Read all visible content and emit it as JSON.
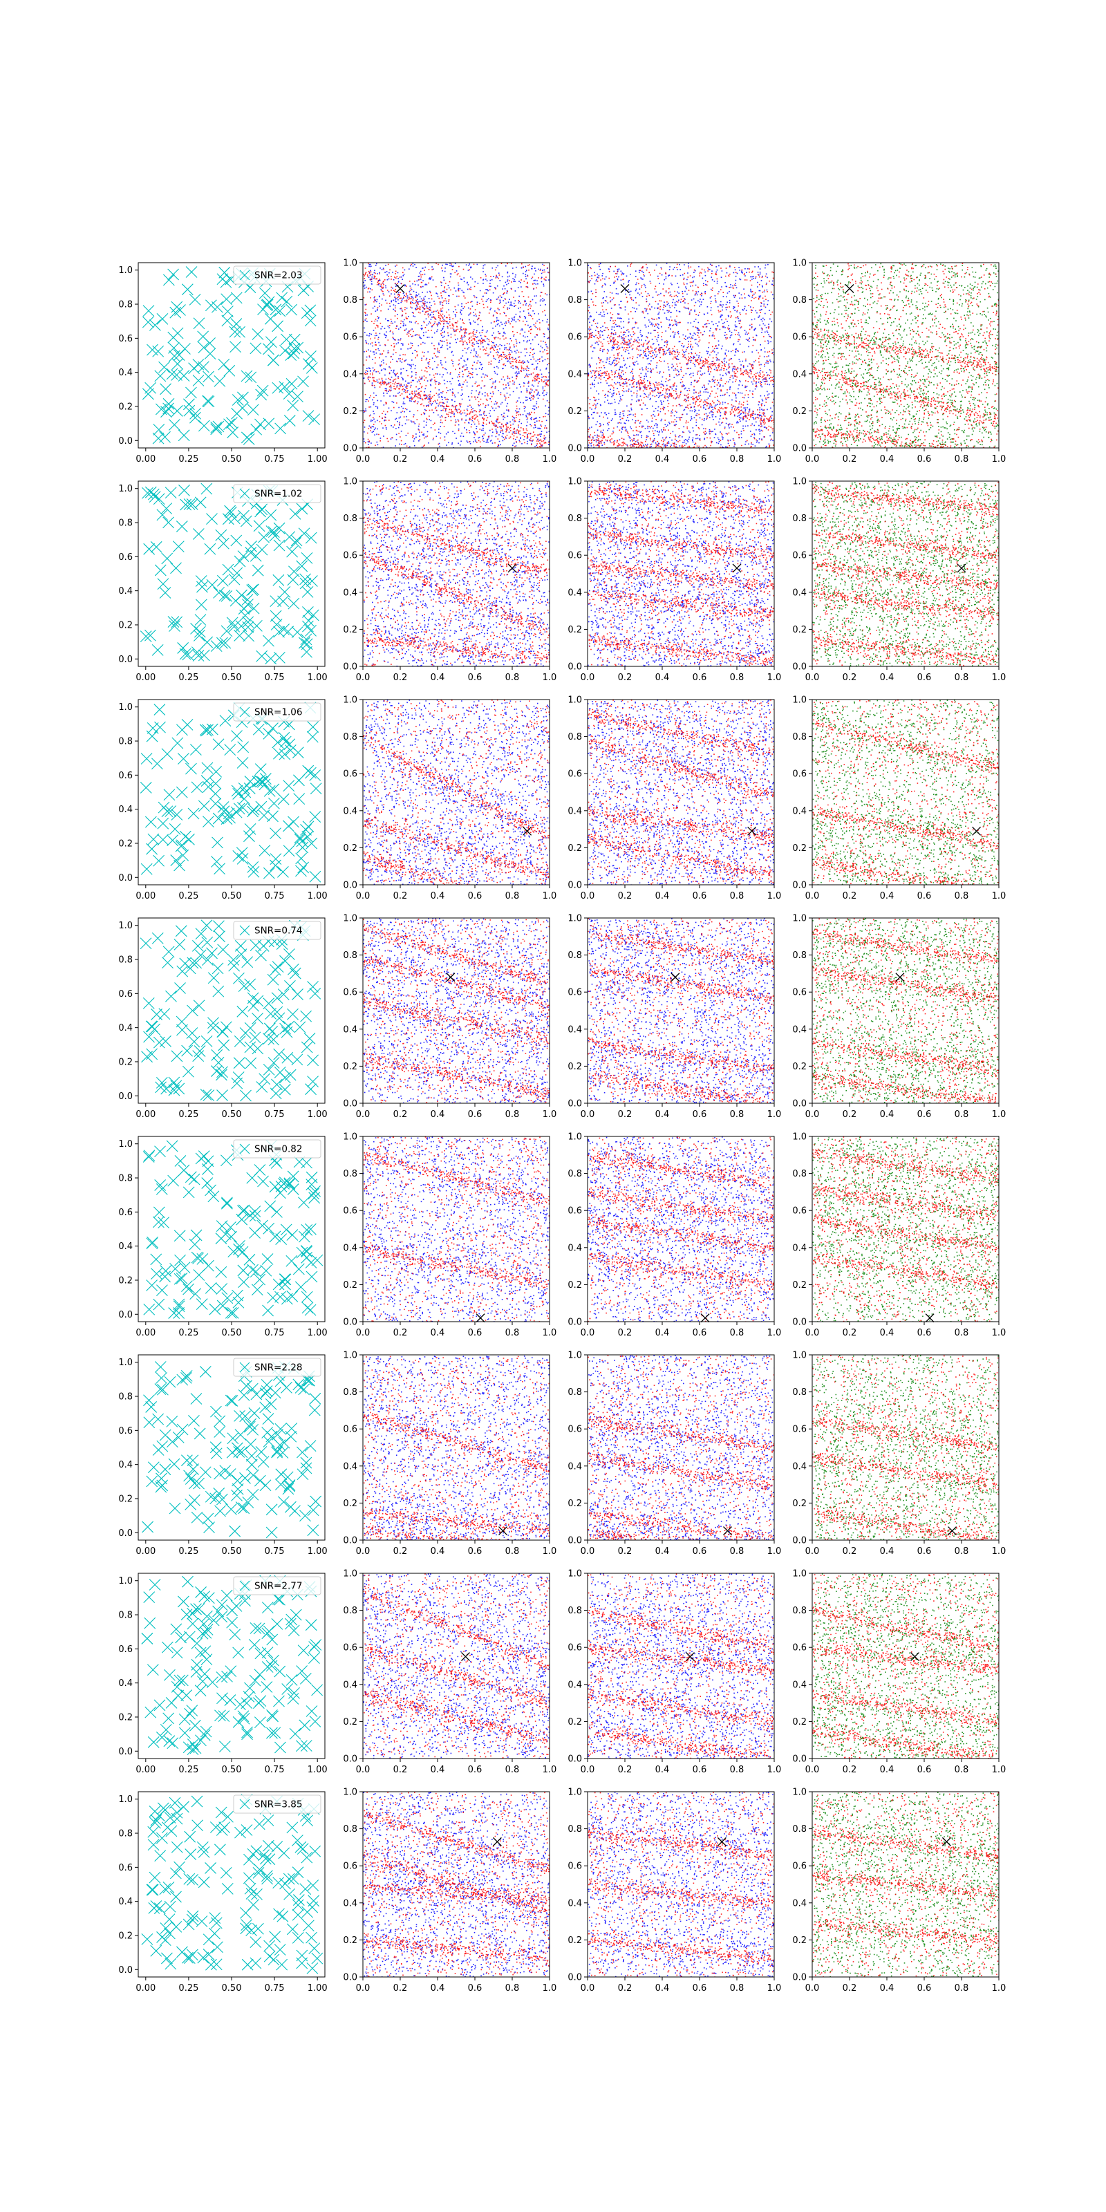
{
  "figure": {
    "rows": 8,
    "cols": 4,
    "colors": {
      "cross_marker": "#00bfbf",
      "signal": "#ff0000",
      "noise_blue": "#0000ff",
      "noise_green": "#008000",
      "target_marker": "#000000"
    }
  },
  "chart_data": [
    {
      "row": 0,
      "legend": "SNR=2.03",
      "target": [
        0.2,
        0.86
      ],
      "bands": [
        [
          0.4,
          0.38
        ],
        [
          0.95,
          0.6
        ]
      ],
      "bands_col2": [
        [
          0.05,
          0.1
        ],
        [
          0.42,
          0.28
        ],
        [
          0.62,
          0.25
        ]
      ],
      "bands_col3": [
        [
          0.1,
          0.15
        ],
        [
          0.42,
          0.28
        ],
        [
          0.62,
          0.18
        ]
      ]
    },
    {
      "row": 1,
      "legend": "SNR=1.02",
      "target": [
        0.8,
        0.53
      ],
      "bands": [
        [
          0.6,
          0.42
        ],
        [
          0.15,
          0.1
        ],
        [
          0.8,
          0.3
        ]
      ],
      "bands_col2": [
        [
          0.95,
          0.1
        ],
        [
          0.72,
          0.12
        ],
        [
          0.55,
          0.12
        ],
        [
          0.4,
          0.12
        ],
        [
          0.15,
          0.12
        ]
      ],
      "bands_col3": [
        [
          0.95,
          0.1
        ],
        [
          0.72,
          0.12
        ],
        [
          0.55,
          0.12
        ],
        [
          0.4,
          0.12
        ],
        [
          0.15,
          0.12
        ]
      ]
    },
    {
      "row": 2,
      "legend": "SNR=1.06",
      "target": [
        0.88,
        0.29
      ],
      "bands": [
        [
          0.8,
          0.55
        ],
        [
          0.35,
          0.3
        ],
        [
          0.15,
          0.3
        ]
      ],
      "bands_col2": [
        [
          0.92,
          0.2
        ],
        [
          0.78,
          0.3
        ],
        [
          0.4,
          0.15
        ],
        [
          0.25,
          0.2
        ]
      ],
      "bands_col3": [
        [
          0.88,
          0.25
        ],
        [
          0.4,
          0.18
        ],
        [
          0.12,
          0.15
        ]
      ]
    },
    {
      "row": 3,
      "legend": "SNR=0.74",
      "target": [
        0.47,
        0.68
      ],
      "bands": [
        [
          0.95,
          0.3
        ],
        [
          0.78,
          0.25
        ],
        [
          0.55,
          0.2
        ],
        [
          0.25,
          0.2
        ]
      ],
      "bands_col2": [
        [
          0.92,
          0.15
        ],
        [
          0.72,
          0.15
        ],
        [
          0.33,
          0.15
        ],
        [
          0.15,
          0.15
        ]
      ],
      "bands_col3": [
        [
          0.92,
          0.15
        ],
        [
          0.72,
          0.15
        ],
        [
          0.33,
          0.15
        ],
        [
          0.15,
          0.15
        ]
      ]
    },
    {
      "row": 4,
      "legend": "SNR=0.82",
      "target": [
        0.63,
        0.02
      ],
      "bands": [
        [
          0.9,
          0.25
        ],
        [
          0.4,
          0.2
        ]
      ],
      "bands_col2": [
        [
          0.9,
          0.15
        ],
        [
          0.7,
          0.15
        ],
        [
          0.55,
          0.15
        ],
        [
          0.35,
          0.15
        ]
      ],
      "bands_col3": [
        [
          0.92,
          0.15
        ],
        [
          0.72,
          0.15
        ],
        [
          0.55,
          0.15
        ],
        [
          0.35,
          0.15
        ]
      ]
    },
    {
      "row": 5,
      "legend": "SNR=2.28",
      "target": [
        0.75,
        0.05
      ],
      "bands": [
        [
          0.68,
          0.3
        ],
        [
          0.15,
          0.1
        ],
        [
          0.05,
          0.1
        ]
      ],
      "bands_col2": [
        [
          0.65,
          0.15
        ],
        [
          0.45,
          0.15
        ],
        [
          0.15,
          0.15
        ],
        [
          0.05,
          0.15
        ]
      ],
      "bands_col3": [
        [
          0.65,
          0.15
        ],
        [
          0.45,
          0.15
        ],
        [
          0.15,
          0.15
        ]
      ]
    },
    {
      "row": 6,
      "legend": "SNR=2.77",
      "target": [
        0.55,
        0.55
      ],
      "bands": [
        [
          0.9,
          0.4
        ],
        [
          0.6,
          0.3
        ],
        [
          0.35,
          0.25
        ]
      ],
      "bands_col2": [
        [
          0.8,
          0.2
        ],
        [
          0.6,
          0.12
        ],
        [
          0.35,
          0.15
        ],
        [
          0.15,
          0.15
        ]
      ],
      "bands_col3": [
        [
          0.8,
          0.2
        ],
        [
          0.6,
          0.12
        ],
        [
          0.35,
          0.15
        ],
        [
          0.15,
          0.15
        ]
      ]
    },
    {
      "row": 7,
      "legend": "SNR=3.85",
      "target": [
        0.72,
        0.73
      ],
      "bands": [
        [
          0.88,
          0.3
        ],
        [
          0.65,
          0.3
        ],
        [
          0.48,
          0.05
        ],
        [
          0.2,
          0.1
        ]
      ],
      "bands_col2": [
        [
          0.78,
          0.12
        ],
        [
          0.5,
          0.1
        ],
        [
          0.2,
          0.1
        ]
      ],
      "bands_col3": [
        [
          0.78,
          0.12
        ],
        [
          0.55,
          0.1
        ],
        [
          0.3,
          0.1
        ]
      ]
    }
  ],
  "axes": {
    "col1": {
      "xlim": [
        0,
        1
      ],
      "ylim": [
        0,
        1
      ],
      "xticks": [
        "0.00",
        "0.25",
        "0.50",
        "0.75",
        "1.00"
      ],
      "yticks": [
        "0.0",
        "0.2",
        "0.4",
        "0.6",
        "0.8",
        "1.0"
      ]
    },
    "scatter": {
      "xlim": [
        0,
        1
      ],
      "ylim": [
        0,
        1
      ],
      "xticks": [
        "0.0",
        "0.2",
        "0.4",
        "0.6",
        "0.8",
        "1.0"
      ],
      "yticks": [
        "0.0",
        "0.2",
        "0.4",
        "0.6",
        "0.8",
        "1.0"
      ]
    }
  }
}
